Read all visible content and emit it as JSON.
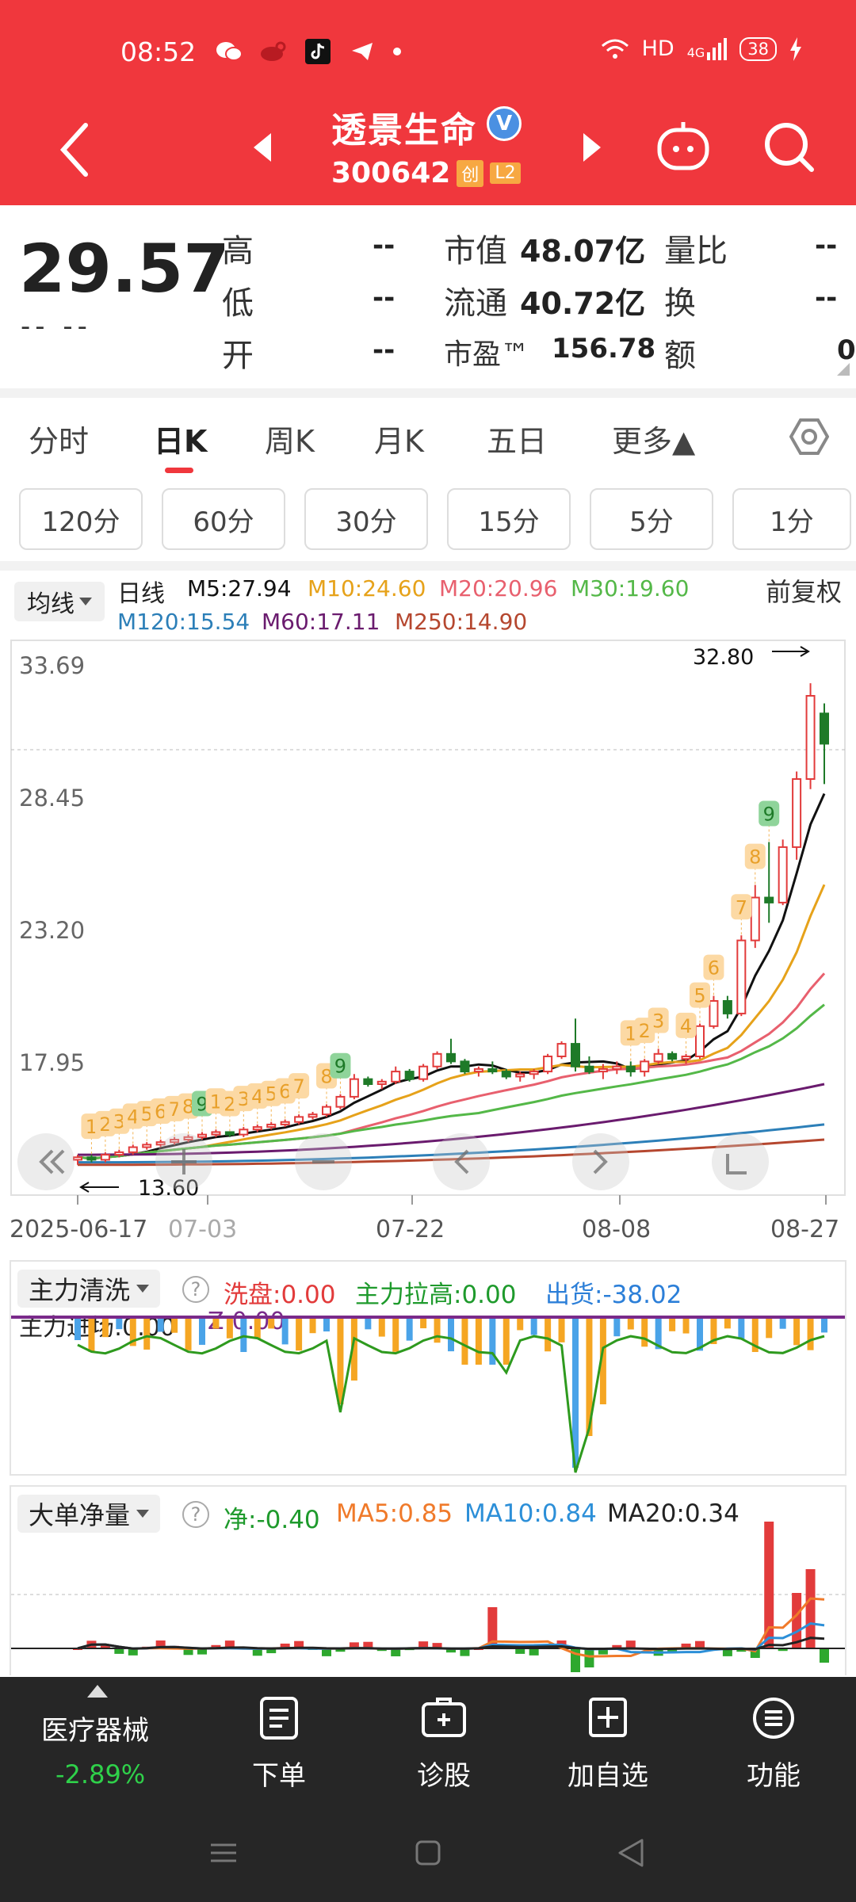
{
  "status_bar": {
    "time": "08:52",
    "network": "HD",
    "signal": "4G",
    "battery": "38",
    "app_icons": [
      "wechat-icon",
      "weibo-icon",
      "tiktok-icon",
      "telegram-icon"
    ]
  },
  "header": {
    "stock_name": "透景生命",
    "verify_mark": "V",
    "stock_code": "300642",
    "tags": [
      "创",
      "L2"
    ]
  },
  "quote": {
    "price": "29.57",
    "change": "-- --",
    "rows": [
      {
        "label": "高",
        "value": "--"
      },
      {
        "label": "低",
        "value": "--"
      },
      {
        "label": "开",
        "value": "--"
      }
    ],
    "mid": [
      {
        "label": "市值",
        "value": "48.07亿"
      },
      {
        "label": "流通",
        "value": "40.72亿"
      },
      {
        "label": "市盈™",
        "value": "156.78"
      }
    ],
    "right": [
      {
        "label": "量比",
        "value": "--"
      },
      {
        "label": "换",
        "value": "--"
      },
      {
        "label": "额",
        "value": "0"
      }
    ]
  },
  "period_tabs": [
    "分时",
    "日K",
    "周K",
    "月K",
    "五日",
    "更多▲"
  ],
  "minute_buttons": [
    "120分",
    "60分",
    "30分",
    "15分",
    "5分",
    "1分"
  ],
  "ma_legend": {
    "selector": "均线",
    "title": "日线",
    "items": [
      {
        "text": "M5:27.94",
        "color": "#111111"
      },
      {
        "text": "M10:24.60",
        "color": "#e6a21a"
      },
      {
        "text": "M20:20.96",
        "color": "#e8606e"
      },
      {
        "text": "M30:19.60",
        "color": "#54b848"
      },
      {
        "text": "M120:15.54",
        "color": "#2c7fb8"
      },
      {
        "text": "M60:17.11",
        "color": "#6a1b6e"
      },
      {
        "text": "M250:14.90",
        "color": "#b5472f"
      }
    ],
    "fuquan": "前复权"
  },
  "chart_data": [
    {
      "type": "candlestick",
      "title": "日线",
      "y_ticks": [
        "33.69",
        "28.45",
        "23.20",
        "17.95"
      ],
      "ylim": [
        12.7,
        34.7
      ],
      "x_labels": [
        "2025-06-17",
        "07-03",
        "07-22",
        "08-08",
        "08-27"
      ],
      "max_marker": "32.80",
      "min_marker": "13.60",
      "candles": [
        [
          14.1,
          14.3,
          13.9,
          14.2
        ],
        [
          14.2,
          14.3,
          14.0,
          14.1
        ],
        [
          14.1,
          14.4,
          14.0,
          14.3
        ],
        [
          14.3,
          14.5,
          14.2,
          14.4
        ],
        [
          14.4,
          14.7,
          14.3,
          14.6
        ],
        [
          14.6,
          14.8,
          14.5,
          14.7
        ],
        [
          14.7,
          14.9,
          14.6,
          14.8
        ],
        [
          14.8,
          15.0,
          14.7,
          14.9
        ],
        [
          14.9,
          15.1,
          14.8,
          15.0
        ],
        [
          15.0,
          15.2,
          14.9,
          15.1
        ],
        [
          15.1,
          15.3,
          15.0,
          15.2
        ],
        [
          15.2,
          15.2,
          15.0,
          15.1
        ],
        [
          15.1,
          15.4,
          15.0,
          15.3
        ],
        [
          15.3,
          15.5,
          15.2,
          15.4
        ],
        [
          15.4,
          15.6,
          15.3,
          15.5
        ],
        [
          15.5,
          15.7,
          15.4,
          15.6
        ],
        [
          15.6,
          15.9,
          15.5,
          15.8
        ],
        [
          15.8,
          16.0,
          15.7,
          15.9
        ],
        [
          15.9,
          16.3,
          15.8,
          16.2
        ],
        [
          16.2,
          16.7,
          16.1,
          16.6
        ],
        [
          16.6,
          17.5,
          16.5,
          17.3
        ],
        [
          17.3,
          17.4,
          17.0,
          17.1
        ],
        [
          17.1,
          17.3,
          16.9,
          17.2
        ],
        [
          17.2,
          17.8,
          17.1,
          17.6
        ],
        [
          17.6,
          17.7,
          17.2,
          17.3
        ],
        [
          17.3,
          17.9,
          17.2,
          17.8
        ],
        [
          17.8,
          18.4,
          17.7,
          18.3
        ],
        [
          18.3,
          18.9,
          17.9,
          18.0
        ],
        [
          18.0,
          18.1,
          17.5,
          17.6
        ],
        [
          17.6,
          17.8,
          17.4,
          17.7
        ],
        [
          17.7,
          18.0,
          17.5,
          17.6
        ],
        [
          17.6,
          17.7,
          17.3,
          17.4
        ],
        [
          17.4,
          17.6,
          17.2,
          17.5
        ],
        [
          17.5,
          17.7,
          17.3,
          17.6
        ],
        [
          17.6,
          18.3,
          17.5,
          18.2
        ],
        [
          18.2,
          18.8,
          18.1,
          18.7
        ],
        [
          18.7,
          19.7,
          17.6,
          17.8
        ],
        [
          17.8,
          18.2,
          17.5,
          17.6
        ],
        [
          17.6,
          17.9,
          17.3,
          17.7
        ],
        [
          17.7,
          18.0,
          17.5,
          17.8
        ],
        [
          17.8,
          18.0,
          17.4,
          17.6
        ],
        [
          17.6,
          18.1,
          17.4,
          18.0
        ],
        [
          18.0,
          18.5,
          17.9,
          18.3
        ],
        [
          18.3,
          18.4,
          18.0,
          18.1
        ],
        [
          18.1,
          18.3,
          17.9,
          18.2
        ],
        [
          18.2,
          19.5,
          18.1,
          19.4
        ],
        [
          19.4,
          20.6,
          19.3,
          20.4
        ],
        [
          20.4,
          20.6,
          19.7,
          19.9
        ],
        [
          19.9,
          23.0,
          19.8,
          22.8
        ],
        [
          22.8,
          25.0,
          22.5,
          24.5
        ],
        [
          24.5,
          26.7,
          23.5,
          24.3
        ],
        [
          24.3,
          26.8,
          24.2,
          26.5
        ],
        [
          26.5,
          29.5,
          26.0,
          29.2
        ],
        [
          29.2,
          33.0,
          28.8,
          32.5
        ],
        [
          31.8,
          32.2,
          29.0,
          30.6
        ]
      ]
    },
    {
      "type": "bar",
      "title": "主力清洗",
      "legend": [
        "洗盘:0.00",
        "主力拉高:0.00",
        "出货:-38.02"
      ],
      "sub_legend": [
        "主力进场:0.00",
        "Z:0.00"
      ]
    },
    {
      "type": "bar",
      "title": "大单净量",
      "legend": [
        "净:-0.40",
        "MA5:0.85",
        "MA10:0.84",
        "MA20:0.34"
      ]
    }
  ],
  "bottom_nav": {
    "sector": "医疗器械",
    "sector_change": "-2.89%",
    "items": [
      "下单",
      "诊股",
      "加自选",
      "功能"
    ]
  }
}
